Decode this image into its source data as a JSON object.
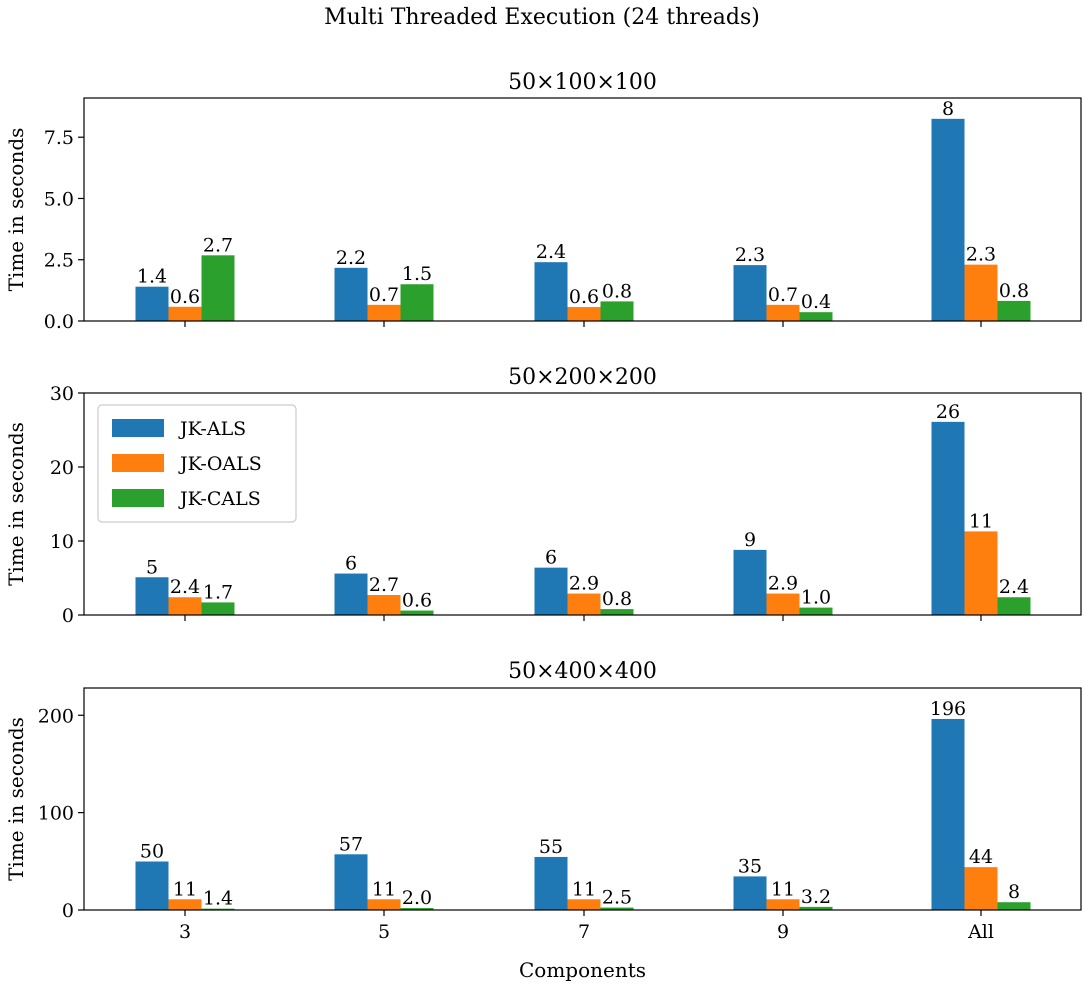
{
  "title": "Multi Threaded Execution (24 threads)",
  "chart_data": [
    {
      "type": "bar",
      "title": "50×100×100",
      "categories": [
        "3",
        "5",
        "7",
        "9",
        "All"
      ],
      "xlabel": "",
      "ylabel": "Time in seconds",
      "ylim": [
        0,
        9.1
      ],
      "yticks": [
        0.0,
        2.5,
        5.0,
        7.5
      ],
      "ytick_labels": [
        "0.0",
        "2.5",
        "5.0",
        "7.5"
      ],
      "series": [
        {
          "name": "JK-ALS",
          "color": "#1f77b4",
          "values": [
            1.4,
            2.17,
            2.4,
            2.28,
            8.25
          ],
          "labels": [
            "1.4",
            "2.2",
            "2.4",
            "2.3",
            "8"
          ]
        },
        {
          "name": "JK-OALS",
          "color": "#ff7f0e",
          "values": [
            0.58,
            0.66,
            0.57,
            0.66,
            2.3
          ],
          "labels": [
            "0.6",
            "0.7",
            "0.6",
            "0.7",
            "2.3"
          ]
        },
        {
          "name": "JK-CALS",
          "color": "#2ca02c",
          "values": [
            2.68,
            1.5,
            0.8,
            0.36,
            0.82
          ],
          "labels": [
            "2.7",
            "1.5",
            "0.8",
            "0.4",
            "0.8"
          ]
        }
      ],
      "legend": null
    },
    {
      "type": "bar",
      "title": "50×200×200",
      "categories": [
        "3",
        "5",
        "7",
        "9",
        "All"
      ],
      "xlabel": "",
      "ylabel": "Time in seconds",
      "ylim": [
        0,
        30
      ],
      "yticks": [
        0,
        10,
        20,
        30
      ],
      "ytick_labels": [
        "0",
        "10",
        "20",
        "30"
      ],
      "series": [
        {
          "name": "JK-ALS",
          "color": "#1f77b4",
          "values": [
            5.1,
            5.6,
            6.4,
            8.8,
            26.1
          ],
          "labels": [
            "5",
            "6",
            "6",
            "9",
            "26"
          ]
        },
        {
          "name": "JK-OALS",
          "color": "#ff7f0e",
          "values": [
            2.4,
            2.7,
            2.9,
            2.9,
            11.3
          ],
          "labels": [
            "2.4",
            "2.7",
            "2.9",
            "2.9",
            "11"
          ]
        },
        {
          "name": "JK-CALS",
          "color": "#2ca02c",
          "values": [
            1.7,
            0.6,
            0.8,
            1.0,
            2.4
          ],
          "labels": [
            "1.7",
            "0.6",
            "0.8",
            "1.0",
            "2.4"
          ]
        }
      ],
      "legend": "upper-left"
    },
    {
      "type": "bar",
      "title": "50×400×400",
      "categories": [
        "3",
        "5",
        "7",
        "9",
        "All"
      ],
      "xlabel": "Components",
      "ylabel": "Time in seconds",
      "ylim": [
        0,
        228
      ],
      "yticks": [
        0,
        100,
        200
      ],
      "ytick_labels": [
        "0",
        "100",
        "200"
      ],
      "series": [
        {
          "name": "JK-ALS",
          "color": "#1f77b4",
          "values": [
            49.8,
            57.2,
            54.5,
            34.5,
            196.2
          ],
          "labels": [
            "50",
            "57",
            "55",
            "35",
            "196"
          ]
        },
        {
          "name": "JK-OALS",
          "color": "#ff7f0e",
          "values": [
            11,
            11,
            11,
            11,
            44
          ],
          "labels": [
            "11",
            "11",
            "11",
            "11",
            "44"
          ]
        },
        {
          "name": "JK-CALS",
          "color": "#2ca02c",
          "values": [
            1.4,
            2.0,
            2.5,
            3.2,
            8
          ],
          "labels": [
            "1.4",
            "2.0",
            "2.5",
            "3.2",
            "8"
          ]
        }
      ],
      "legend": null
    }
  ]
}
